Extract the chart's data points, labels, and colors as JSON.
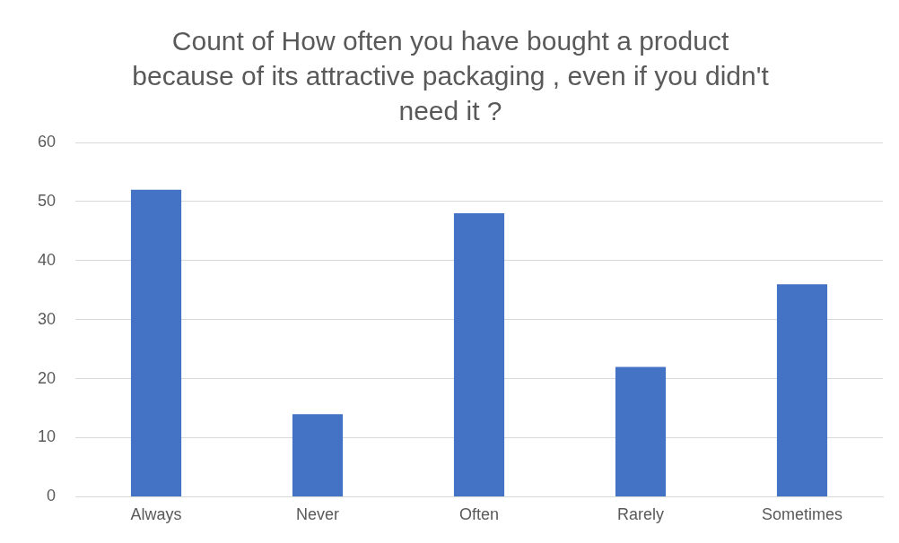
{
  "chart_data": {
    "type": "bar",
    "title": "Count of How often you have bought a product because of its attractive packaging , even if you didn't need it ?",
    "categories": [
      "Always",
      "Never",
      "Often",
      "Rarely",
      "Sometimes"
    ],
    "values": [
      52,
      14,
      48,
      22,
      36
    ],
    "color": "#4472c4",
    "ylim": [
      0,
      60
    ],
    "yticks": [
      0,
      10,
      20,
      30,
      40,
      50,
      60
    ],
    "grid": "y",
    "legend": false
  }
}
